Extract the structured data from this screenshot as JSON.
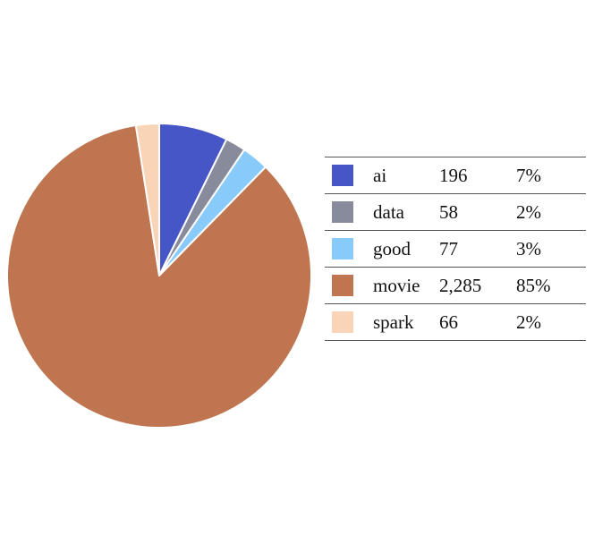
{
  "chart_data": {
    "type": "pie",
    "categories": [
      "ai",
      "data",
      "good",
      "movie",
      "spark"
    ],
    "values": [
      196,
      58,
      77,
      2285,
      66
    ],
    "value_labels": [
      "196",
      "58",
      "77",
      "2,285",
      "66"
    ],
    "percent_labels": [
      "7%",
      "2%",
      "3%",
      "85%",
      "2%"
    ],
    "colors": [
      "#4756c6",
      "#888b9c",
      "#88cbfa",
      "#be7550",
      "#f9d4b6"
    ],
    "start_angle": "top (12 o'clock), clockwise",
    "legend_position": "right"
  }
}
